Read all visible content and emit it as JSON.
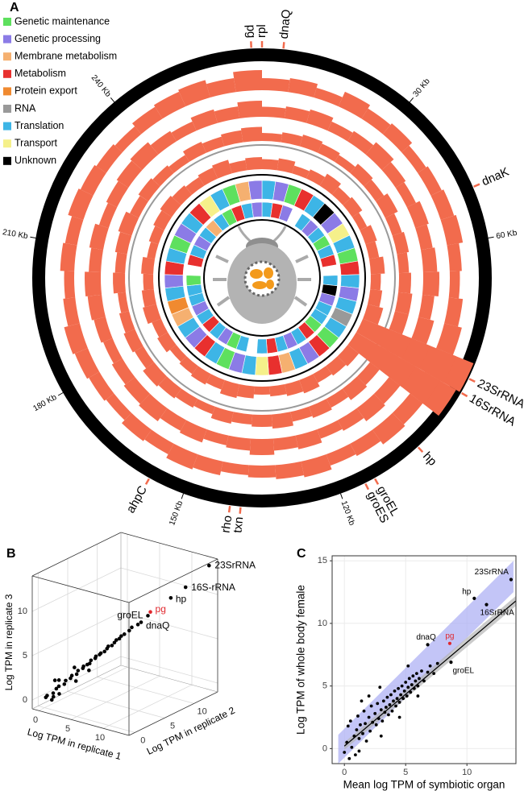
{
  "chart_data": [
    {
      "type": "circular_genome",
      "label": "A",
      "xlim": [
        0,
        270
      ],
      "xticks": [
        {
          "value": 30,
          "label": "30 Kb"
        },
        {
          "value": 60,
          "label": "60 Kb"
        },
        {
          "value": 120,
          "label": "120 Kb"
        },
        {
          "value": 150,
          "label": "150 Kb"
        },
        {
          "value": 180,
          "label": "180 Kb"
        },
        {
          "value": 210,
          "label": "210 Kb"
        },
        {
          "value": 240,
          "label": "240 Kb"
        }
      ],
      "legend": [
        {
          "name": "Genetic maintenance",
          "color": "#5ee05e"
        },
        {
          "name": "Genetic processing",
          "color": "#8b7be6"
        },
        {
          "name": "Membrane metabolism",
          "color": "#f5b070"
        },
        {
          "name": "Metabolism",
          "color": "#e8302e"
        },
        {
          "name": "Protein export",
          "color": "#f08a30"
        },
        {
          "name": "RNA",
          "color": "#999999"
        },
        {
          "name": "Translation",
          "color": "#3db5e6"
        },
        {
          "name": "Transport",
          "color": "#f5f08a"
        },
        {
          "name": "Unknown",
          "color": "#000000"
        }
      ],
      "bins": [
        0,
        6,
        12,
        18,
        24,
        30,
        36,
        42,
        48,
        54,
        60,
        66,
        72,
        78,
        84,
        90,
        96,
        102,
        108,
        114,
        120,
        126,
        132,
        138,
        144,
        150,
        156,
        162,
        168,
        174,
        180,
        186,
        192,
        198,
        204,
        210,
        216,
        222,
        228,
        234,
        240,
        246,
        252,
        258,
        264,
        270
      ],
      "tracks": [
        {
          "color": "#f26b4d",
          "values": [
            6,
            7,
            5,
            8,
            6,
            7,
            5,
            6,
            7,
            8,
            6,
            5,
            7,
            9,
            20,
            18,
            8,
            9,
            7,
            6,
            8,
            7,
            6,
            5,
            7,
            8,
            6,
            7,
            5,
            6,
            7,
            8,
            6,
            5,
            7,
            6,
            8,
            7,
            6,
            5,
            7,
            8,
            9,
            7,
            10
          ]
        },
        {
          "color": "#f26b4d",
          "values": [
            5,
            6,
            7,
            5,
            6,
            8,
            6,
            5,
            7,
            6,
            7,
            8,
            6,
            8,
            24,
            22,
            7,
            8,
            6,
            5,
            7,
            6,
            8,
            6,
            5,
            7,
            6,
            8,
            7,
            6,
            5,
            6,
            7,
            8,
            6,
            7,
            5,
            6,
            7,
            8,
            6,
            5,
            7,
            6,
            8
          ]
        },
        {
          "color": "#f26b4d",
          "values": [
            4,
            5,
            6,
            5,
            4,
            6,
            5,
            7,
            5,
            6,
            5,
            6,
            7,
            7,
            22,
            20,
            6,
            7,
            5,
            6,
            5,
            7,
            6,
            5,
            6,
            4,
            5,
            6,
            7,
            5,
            6,
            5,
            4,
            6,
            5,
            6,
            7,
            5,
            6,
            5,
            4,
            6,
            5,
            6,
            7
          ]
        },
        {
          "color": "#f26b4d",
          "values": [
            5,
            6,
            4,
            5,
            7,
            5,
            6,
            4,
            6,
            5,
            7,
            5,
            6,
            8,
            26,
            24,
            7,
            6,
            5,
            7,
            6,
            5,
            4,
            6,
            7,
            5,
            6,
            5,
            4,
            6,
            5,
            7,
            6,
            5,
            6,
            4,
            5,
            6,
            7,
            6,
            5,
            6,
            7,
            5,
            6
          ]
        }
      ],
      "gene_rings": [
        [
          6,
          1,
          0,
          3,
          6,
          8,
          1,
          7,
          6,
          0,
          3,
          6,
          1,
          6,
          5,
          6,
          0,
          3,
          1,
          6,
          2,
          3,
          7,
          6,
          1,
          0,
          6,
          3,
          1,
          6,
          2,
          4,
          6,
          1,
          3,
          6,
          0,
          1,
          6,
          3,
          7,
          6,
          0,
          2,
          1
        ],
        [
          6,
          3,
          1,
          null,
          6,
          1,
          6,
          0,
          6,
          3,
          null,
          6,
          8,
          1,
          6,
          6,
          0,
          3,
          6,
          1,
          6,
          3,
          6,
          null,
          6,
          0,
          1,
          6,
          3,
          6,
          1,
          6,
          6,
          0,
          null,
          3,
          6,
          1,
          6,
          2,
          6,
          0,
          3,
          6,
          1
        ]
      ],
      "gene_color": "#f26b4d",
      "genes": [
        {
          "name": "dnaQ",
          "position": 4
        },
        {
          "name": "rpl",
          "position": 0
        },
        {
          "name": "pg",
          "position": 268
        },
        {
          "name": "dnaK",
          "position": 50
        },
        {
          "name": "23SrRNA",
          "position": 87
        },
        {
          "name": "16SrRNA",
          "position": 90
        },
        {
          "name": "hp",
          "position": 103
        },
        {
          "name": "groEL",
          "position": 113
        },
        {
          "name": "groES",
          "position": 115
        },
        {
          "name": "txn",
          "position": 139
        },
        {
          "name": "rho",
          "position": 141
        },
        {
          "name": "ahpC",
          "position": 157
        }
      ]
    },
    {
      "type": "scatter3d",
      "label": "B",
      "xlabel": "Log TPM in replicate 1",
      "ylabel": "Log TPM in replicate 2",
      "zlabel": "Log TPM in replicate 3",
      "xlim": [
        -1,
        14
      ],
      "ylim": [
        -1,
        14
      ],
      "zlim": [
        -1,
        14
      ],
      "xticks": [
        0,
        5,
        10
      ],
      "yticks": [
        0,
        5,
        10
      ],
      "zticks": [
        0,
        5,
        10
      ],
      "grid": true,
      "color": "#000000",
      "x": [
        0.0,
        0.3,
        0.6,
        0.9,
        1.2,
        1.5,
        1.8,
        2.0,
        2.3,
        2.5,
        2.8,
        3.0,
        3.2,
        3.4,
        3.6,
        3.8,
        4.0,
        4.2,
        4.4,
        4.6,
        4.8,
        5.0,
        5.2,
        5.4,
        5.6,
        5.8,
        6.0,
        6.2,
        6.5,
        6.8,
        7.1,
        7.5,
        0.5,
        1.0,
        2.2,
        0.2,
        1.4,
        3.3,
        0.8,
        2.7
      ],
      "y": [
        0.2,
        0.1,
        0.8,
        1.0,
        1.1,
        1.7,
        1.6,
        2.2,
        2.1,
        2.7,
        2.6,
        3.2,
        3.1,
        3.5,
        3.7,
        3.7,
        4.2,
        4.1,
        4.5,
        4.5,
        4.9,
        5.1,
        5.1,
        5.5,
        5.7,
        5.8,
        6.1,
        6.2,
        6.4,
        6.9,
        7.0,
        7.6,
        1.2,
        0.4,
        2.9,
        1.0,
        0.9,
        3.9,
        1.6,
        2.1
      ],
      "z": [
        0.1,
        0.4,
        0.5,
        1.0,
        1.3,
        1.4,
        1.9,
        2.0,
        2.4,
        2.4,
        2.9,
        3.0,
        3.3,
        3.4,
        3.5,
        3.9,
        4.0,
        4.3,
        4.4,
        4.6,
        4.7,
        5.0,
        5.3,
        5.3,
        5.6,
        5.9,
        6.0,
        6.3,
        6.5,
        6.8,
        7.2,
        7.4,
        1.8,
        0.3,
        1.5,
        -0.4,
        2.1,
        2.6,
        0.2,
        3.4
      ],
      "highlights": [
        {
          "name": "23SrRNA",
          "x": 13.4,
          "y": 13.2,
          "z": 13.4,
          "color": "#000000"
        },
        {
          "name": "16S-rRNA",
          "x": 11.5,
          "y": 11.3,
          "z": 11.2,
          "color": "#000000"
        },
        {
          "name": "hp",
          "x": 10.4,
          "y": 10.0,
          "z": 10.2,
          "color": "#000000"
        },
        {
          "name": "pg",
          "x": 8.7,
          "y": 8.4,
          "z": 8.8,
          "color": "#e0282e"
        },
        {
          "name": "groEL",
          "x": 8.5,
          "y": 8.2,
          "z": 8.4,
          "color": "#000000"
        },
        {
          "name": "dnaQ",
          "x": 7.9,
          "y": 7.7,
          "z": 7.7,
          "color": "#000000"
        }
      ]
    },
    {
      "type": "scatter",
      "label": "C",
      "xlabel": "Mean log TPM of symbiotic organ",
      "ylabel": "Log TPM of whole body female",
      "xlim": [
        -1,
        14
      ],
      "ylim": [
        -1.2,
        15.4
      ],
      "xticks": [
        0,
        5,
        10
      ],
      "yticks": [
        0,
        5,
        10,
        15
      ],
      "grid": true,
      "color": "#000000",
      "x": [
        0,
        0.2,
        0.3,
        0.5,
        0.6,
        0.8,
        0.9,
        1.0,
        1.1,
        1.2,
        1.3,
        1.5,
        1.6,
        1.7,
        1.8,
        2.0,
        2.1,
        2.2,
        2.3,
        2.5,
        2.6,
        2.7,
        2.8,
        3.0,
        3.1,
        3.2,
        3.3,
        3.4,
        3.5,
        3.6,
        3.7,
        3.8,
        3.9,
        4.0,
        4.1,
        4.2,
        4.3,
        4.4,
        4.5,
        4.6,
        4.7,
        4.8,
        4.9,
        5.0,
        5.1,
        5.2,
        5.3,
        5.4,
        5.5,
        5.6,
        5.7,
        5.8,
        5.9,
        6.0,
        6.1,
        6.3,
        6.5,
        6.8,
        7.0,
        7.3,
        7.6,
        3.0,
        2.0,
        1.4,
        4.5,
        0.4,
        6.0,
        5.2,
        2.9,
        1.2
      ],
      "y": [
        -0.3,
        0.5,
        1.8,
        2.2,
        0.1,
        1.0,
        -0.5,
        1.5,
        2.6,
        0.8,
        1.9,
        1.2,
        3.0,
        2.0,
        0.6,
        2.5,
        1.4,
        3.4,
        2.1,
        2.8,
        1.9,
        3.6,
        2.4,
        3.1,
        2.2,
        3.8,
        2.9,
        3.3,
        4.1,
        2.7,
        3.5,
        4.3,
        3.0,
        3.8,
        4.6,
        3.4,
        4.0,
        4.8,
        3.7,
        4.3,
        5.0,
        4.0,
        4.6,
        5.3,
        4.2,
        4.9,
        5.6,
        4.5,
        5.1,
        5.8,
        4.8,
        5.4,
        6.0,
        5.0,
        5.6,
        6.2,
        5.4,
        6.1,
        6.6,
        6.0,
        6.8,
        1.0,
        4.2,
        3.8,
        2.5,
        -0.8,
        4.2,
        6.6,
        4.9,
        -0.2
      ],
      "bands": [
        {
          "color": "#a9adf3",
          "x": [
            -0.5,
            13.8
          ],
          "lower": [
            -1.2,
            12.5
          ],
          "upper": [
            1.1,
            15.0
          ]
        },
        {
          "color": "#b5b5b5",
          "x": [
            0,
            14
          ],
          "lower": [
            -0.1,
            11.4
          ],
          "upper": [
            0.5,
            12.2
          ]
        }
      ],
      "fit": {
        "color": "#000000",
        "x": [
          0,
          14
        ],
        "y": [
          0.2,
          11.8
        ]
      },
      "highlights": [
        {
          "name": "23SrRNA",
          "x": 13.6,
          "y": 13.5,
          "color": "#000000"
        },
        {
          "name": "hp",
          "x": 10.6,
          "y": 12.0,
          "color": "#000000"
        },
        {
          "name": "16SrRNA",
          "x": 11.6,
          "y": 11.5,
          "color": "#000000"
        },
        {
          "name": "dnaQ",
          "x": 6.8,
          "y": 8.3,
          "color": "#000000"
        },
        {
          "name": "pg",
          "x": 8.6,
          "y": 8.4,
          "color": "#e0282e"
        },
        {
          "name": "groEL",
          "x": 8.7,
          "y": 6.9,
          "color": "#000000"
        }
      ]
    }
  ]
}
